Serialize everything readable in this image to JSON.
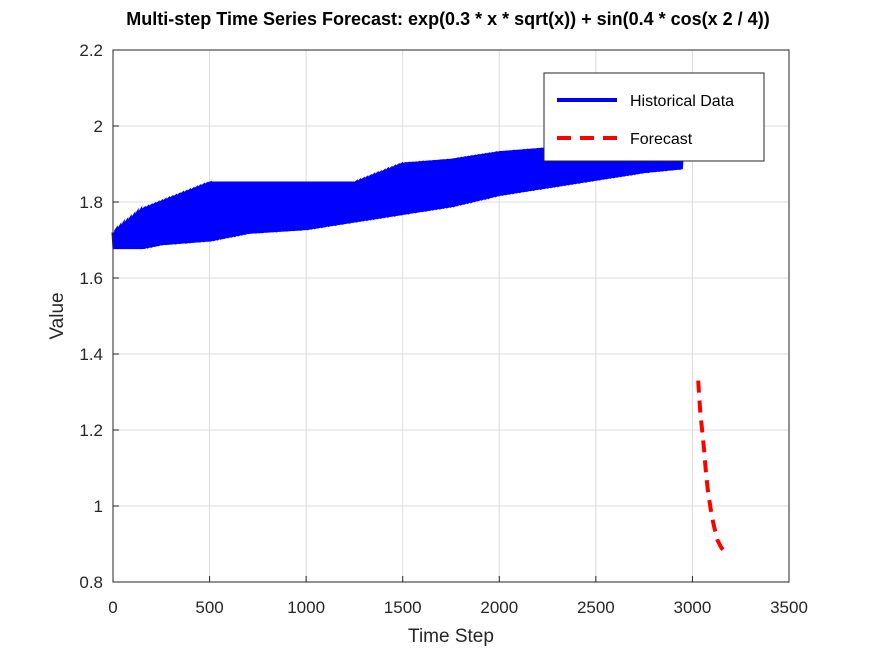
{
  "chart_data": {
    "type": "line",
    "title": "Multi-step Time Series Forecast: exp(0.3 * x * sqrt(x)) + sin(0.4 * cos(x  2 / 4))",
    "xlabel": "Time Step",
    "ylabel": "Value",
    "xlim": [
      0,
      3500
    ],
    "ylim": [
      0.8,
      2.2
    ],
    "xticks": [
      0,
      500,
      1000,
      1500,
      2000,
      2500,
      3000,
      3500
    ],
    "yticks": [
      0.8,
      1.0,
      1.2,
      1.4,
      1.6,
      1.8,
      2.0,
      2.2
    ],
    "xtick_labels": [
      "0",
      "500",
      "1000",
      "1500",
      "2000",
      "2500",
      "3000",
      "3500"
    ],
    "ytick_labels": [
      "0.8",
      "1",
      "1.2",
      "1.4",
      "1.6",
      "1.8",
      "2",
      "2.2"
    ],
    "grid": true,
    "legend_position": "top-right",
    "series": [
      {
        "name": "Historical Data",
        "color": "#0000ff",
        "style": "solid",
        "envelope": {
          "x": [
            0,
            150,
            250,
            500,
            700,
            1000,
            1250,
            1500,
            1750,
            2000,
            2250,
            2500,
            2750,
            2950
          ],
          "upper": [
            1.72,
            1.78,
            1.8,
            1.85,
            1.85,
            1.85,
            1.85,
            1.9,
            1.91,
            1.93,
            1.94,
            1.94,
            1.93,
            1.92
          ],
          "lower": [
            1.68,
            1.68,
            1.69,
            1.7,
            1.72,
            1.73,
            1.75,
            1.77,
            1.79,
            1.82,
            1.84,
            1.86,
            1.88,
            1.89
          ]
        }
      },
      {
        "name": "Forecast",
        "color": "#ff0000",
        "style": "dashed",
        "x": [
          3030,
          3040,
          3050,
          3060,
          3070,
          3080,
          3095,
          3110,
          3130,
          3150,
          3170,
          3180
        ],
        "y": [
          1.33,
          1.25,
          1.2,
          1.15,
          1.09,
          1.04,
          0.99,
          0.95,
          0.91,
          0.89,
          0.88,
          0.87
        ]
      }
    ]
  }
}
